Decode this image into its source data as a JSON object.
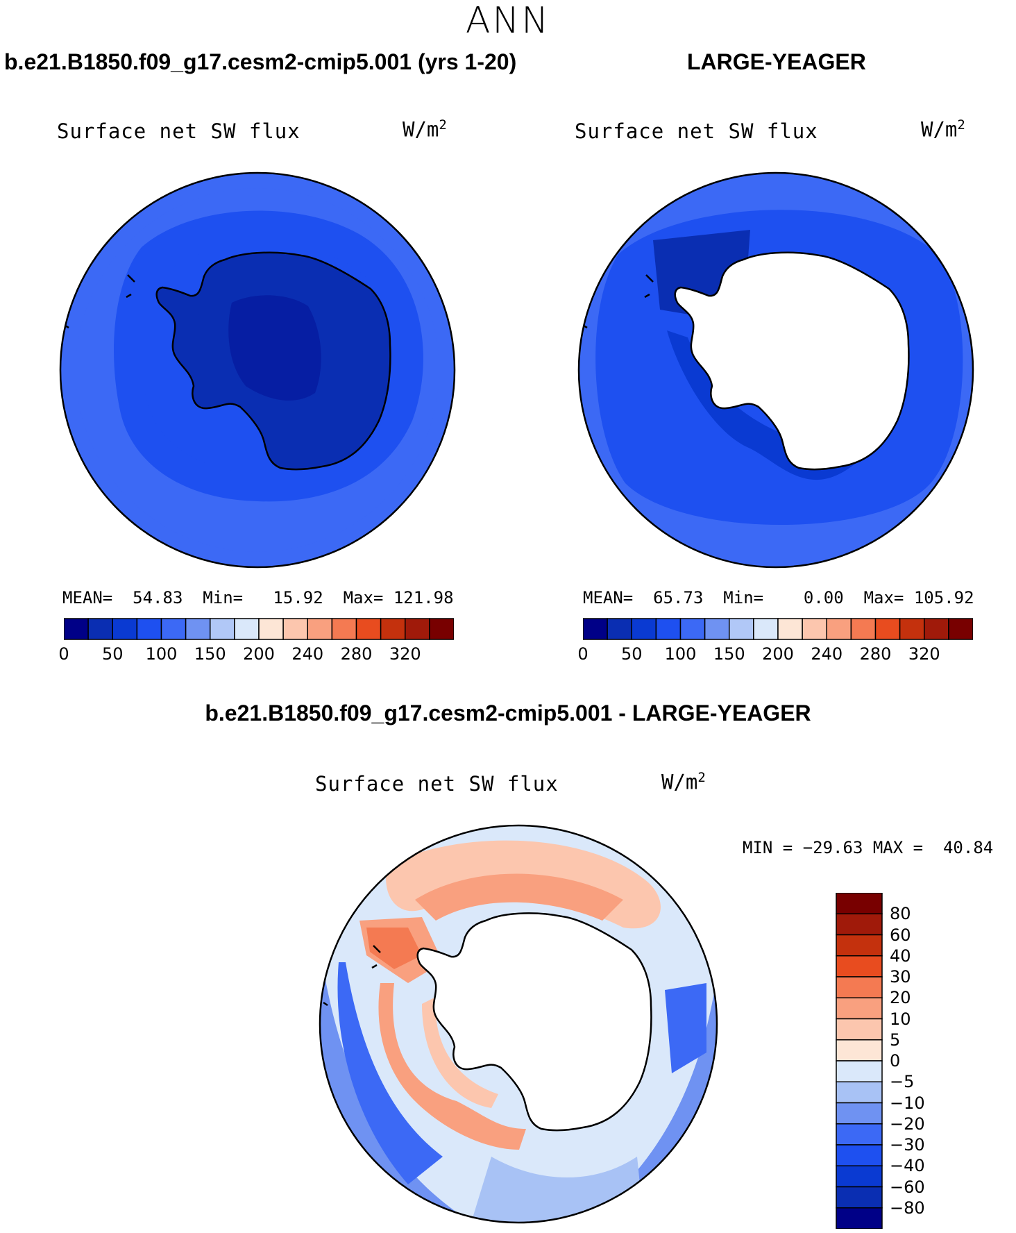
{
  "season": "ANN",
  "colors": {
    "abs_levels": [
      "#000087",
      "#0a2eb2",
      "#0a3ad2",
      "#1e50f0",
      "#3c69f5",
      "#6f92f2",
      "#b1c8f7",
      "#dae8fa",
      "#fde6d6",
      "#fcc6ae",
      "#f9a07f",
      "#f47a52",
      "#e84c1f",
      "#c4310d",
      "#a01a0a",
      "#780000"
    ],
    "diff_levels": [
      "#000087",
      "#0a2eb2",
      "#0a3ad2",
      "#1e50f0",
      "#3c69f5",
      "#6f92f2",
      "#a8c2f5",
      "#dae8fa",
      "#fde6d6",
      "#fcc6ae",
      "#f9a07f",
      "#f47a52",
      "#e84c1f",
      "#c4310d",
      "#a01a0a",
      "#780000"
    ],
    "land": "#ffffff",
    "coast": "#000000"
  },
  "panels": {
    "test": {
      "case_title": "b.e21.B1850.f09_g17.cesm2-cmip5.001 (yrs 1-20)",
      "var_title": "Surface net SW flux",
      "units_base": "W/m",
      "units_sup": "2",
      "stats": "MEAN=  54.83  Min=   15.92  Max= 121.98",
      "colorbar_ticks": [
        "0",
        "50",
        "100",
        "150",
        "200",
        "240",
        "280",
        "320"
      ]
    },
    "obs": {
      "case_title": "LARGE-YEAGER",
      "var_title": "Surface net SW flux",
      "units_base": "W/m",
      "units_sup": "2",
      "stats": "MEAN=  65.73  Min=    0.00  Max= 105.92",
      "colorbar_ticks": [
        "0",
        "50",
        "100",
        "150",
        "200",
        "240",
        "280",
        "320"
      ]
    },
    "diff": {
      "case_title": "b.e21.B1850.f09_g17.cesm2-cmip5.001 - LARGE-YEAGER",
      "var_title": "Surface net SW flux",
      "units_base": "W/m",
      "units_sup": "2",
      "minmax": "MIN = −29.63 MAX =  40.84",
      "colorbar_ticks": [
        "80",
        "60",
        "40",
        "30",
        "20",
        "10",
        "5",
        "0",
        "−5",
        "−10",
        "−20",
        "−30",
        "−40",
        "−60",
        "−80"
      ]
    }
  },
  "chart_data": [
    {
      "type": "heatmap",
      "projection": "south polar stereographic",
      "title": "b.e21.B1850.f09_g17.cesm2-cmip5.001 (yrs 1-20)",
      "variable": "Surface net SW flux",
      "units": "W/m2",
      "mean": 54.83,
      "min": 15.92,
      "max": 121.98,
      "contour_levels": [
        0,
        25,
        50,
        75,
        100,
        125,
        150,
        175,
        200,
        220,
        240,
        260,
        280,
        300,
        320
      ]
    },
    {
      "type": "heatmap",
      "projection": "south polar stereographic",
      "title": "LARGE-YEAGER",
      "variable": "Surface net SW flux",
      "units": "W/m2",
      "mean": 65.73,
      "min": 0.0,
      "max": 105.92,
      "contour_levels": [
        0,
        25,
        50,
        75,
        100,
        125,
        150,
        175,
        200,
        220,
        240,
        260,
        280,
        300,
        320
      ]
    },
    {
      "type": "heatmap",
      "projection": "south polar stereographic",
      "title": "b.e21.B1850.f09_g17.cesm2-cmip5.001 - LARGE-YEAGER",
      "variable": "Surface net SW flux",
      "units": "W/m2",
      "min": -29.63,
      "max": 40.84,
      "contour_levels": [
        -80,
        -60,
        -40,
        -30,
        -20,
        -10,
        -5,
        0,
        5,
        10,
        20,
        30,
        40,
        60,
        80
      ]
    }
  ]
}
